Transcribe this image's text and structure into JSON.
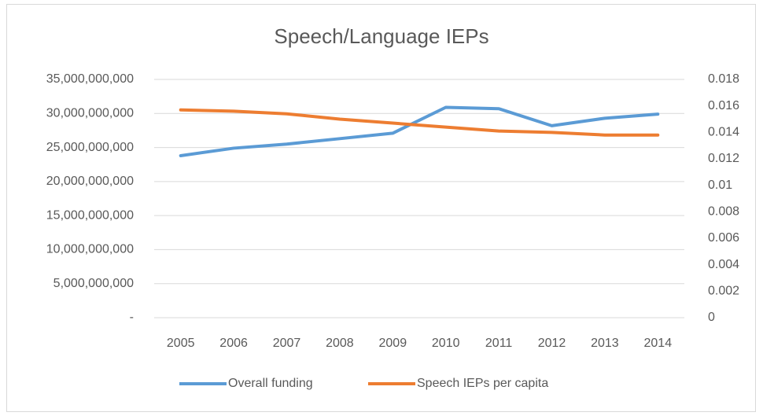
{
  "chart_data": {
    "type": "line",
    "title": "Speech/Language IEPs",
    "categories": [
      "2005",
      "2006",
      "2007",
      "2008",
      "2009",
      "2010",
      "2011",
      "2012",
      "2013",
      "2014"
    ],
    "series": [
      {
        "name": "Overall funding",
        "color": "#5b9bd5",
        "axis": "y",
        "values": [
          23800000000,
          24900000000,
          25500000000,
          26300000000,
          27100000000,
          30900000000,
          30700000000,
          28200000000,
          29300000000,
          29900000000
        ]
      },
      {
        "name": "Speech IEPs per capita",
        "color": "#ed7d31",
        "axis": "y2",
        "values": [
          0.0157,
          0.0156,
          0.0154,
          0.015,
          0.0147,
          0.0144,
          0.0141,
          0.014,
          0.0138,
          0.0138
        ]
      }
    ],
    "ylim": [
      0,
      35000000000
    ],
    "yticks": [
      {
        "value": 0,
        "label": "-"
      },
      {
        "value": 5000000000,
        "label": "5,000,000,000"
      },
      {
        "value": 10000000000,
        "label": "10,000,000,000"
      },
      {
        "value": 15000000000,
        "label": "15,000,000,000"
      },
      {
        "value": 20000000000,
        "label": "20,000,000,000"
      },
      {
        "value": 25000000000,
        "label": "25,000,000,000"
      },
      {
        "value": 30000000000,
        "label": "30,000,000,000"
      },
      {
        "value": 35000000000,
        "label": "35,000,000,000"
      }
    ],
    "y2lim": [
      0,
      0.018
    ],
    "y2ticks": [
      0,
      0.002,
      0.004,
      0.006,
      0.008,
      0.01,
      0.012,
      0.014,
      0.016,
      0.018
    ],
    "grid": true,
    "legend": "bottom"
  }
}
